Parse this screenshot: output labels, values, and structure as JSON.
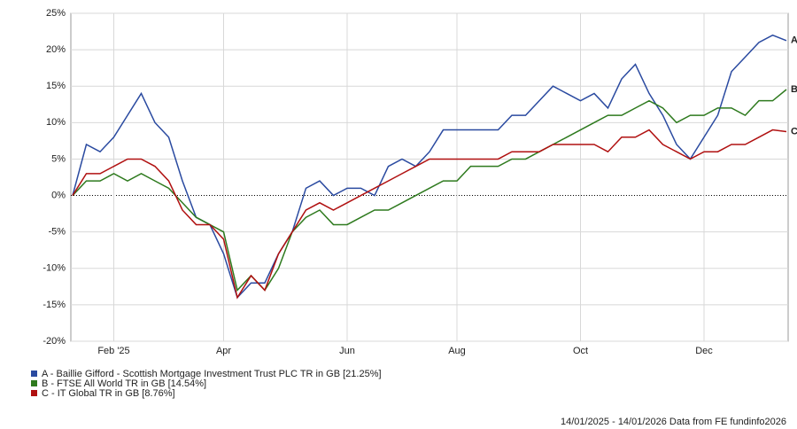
{
  "chart_data": {
    "type": "line",
    "categories": [
      null,
      null,
      null,
      "Feb '25",
      null,
      null,
      null,
      null,
      null,
      null,
      null,
      "Apr",
      null,
      null,
      null,
      null,
      null,
      null,
      null,
      null,
      "Jun",
      null,
      null,
      null,
      null,
      null,
      null,
      null,
      "Aug",
      null,
      null,
      null,
      null,
      null,
      null,
      null,
      null,
      "Oct",
      null,
      null,
      null,
      null,
      null,
      null,
      null,
      null,
      "Dec",
      null,
      null,
      null,
      null,
      null,
      null
    ],
    "series": [
      {
        "name": "A - Baillie Gifford - Scottish Mortgage Investment Trust PLC TR in GB [21.25%]",
        "label": "A",
        "color": "#2a4aa0",
        "values": [
          0,
          7,
          6,
          8,
          11,
          14,
          10,
          8,
          2,
          -3,
          -4,
          -8,
          -14,
          -12,
          -12,
          -8,
          -5,
          1,
          2,
          0,
          1,
          1,
          0,
          4,
          5,
          4,
          6,
          9,
          9,
          9,
          9,
          9,
          11,
          11,
          13,
          15,
          14,
          13,
          14,
          12,
          16,
          18,
          14,
          11,
          7,
          5,
          8,
          11,
          17,
          19,
          21,
          22,
          21.25
        ]
      },
      {
        "name": "B - FTSE All World TR in GB [14.54%]",
        "label": "B",
        "color": "#2e7a1e",
        "values": [
          0,
          2,
          2,
          3,
          2,
          3,
          2,
          1,
          -1,
          -3,
          -4,
          -5,
          -13,
          -11,
          -13,
          -10,
          -5,
          -3,
          -2,
          -4,
          -4,
          -3,
          -2,
          -2,
          -1,
          0,
          1,
          2,
          2,
          4,
          4,
          4,
          5,
          5,
          6,
          7,
          8,
          9,
          10,
          11,
          11,
          12,
          13,
          12,
          10,
          11,
          11,
          12,
          12,
          11,
          13,
          13,
          14.54
        ]
      },
      {
        "name": "C - IT Global TR in GB [8.76%]",
        "label": "C",
        "color": "#b01010",
        "values": [
          0,
          3,
          3,
          4,
          5,
          5,
          4,
          2,
          -2,
          -4,
          -4,
          -6,
          -14,
          -11,
          -13,
          -8,
          -5,
          -2,
          -1,
          -2,
          -1,
          0,
          1,
          2,
          3,
          4,
          5,
          5,
          5,
          5,
          5,
          5,
          6,
          6,
          6,
          7,
          7,
          7,
          7,
          6,
          8,
          8,
          9,
          7,
          6,
          5,
          6,
          6,
          7,
          7,
          8,
          9,
          8.76
        ]
      }
    ],
    "ylim": [
      -20,
      25
    ],
    "yticks": [
      {
        "value": -20,
        "label": "-20%"
      },
      {
        "value": -15,
        "label": "-15%"
      },
      {
        "value": -10,
        "label": "-10%"
      },
      {
        "value": -5,
        "label": "-5%"
      },
      {
        "value": 0,
        "label": "0%"
      },
      {
        "value": 5,
        "label": "5%"
      },
      {
        "value": 10,
        "label": "10%"
      },
      {
        "value": 15,
        "label": "15%"
      },
      {
        "value": 20,
        "label": "20%"
      },
      {
        "value": 25,
        "label": "25%"
      }
    ],
    "grid": true,
    "footer": "14/01/2025 - 14/01/2026 Data from FE fundinfo2026"
  }
}
